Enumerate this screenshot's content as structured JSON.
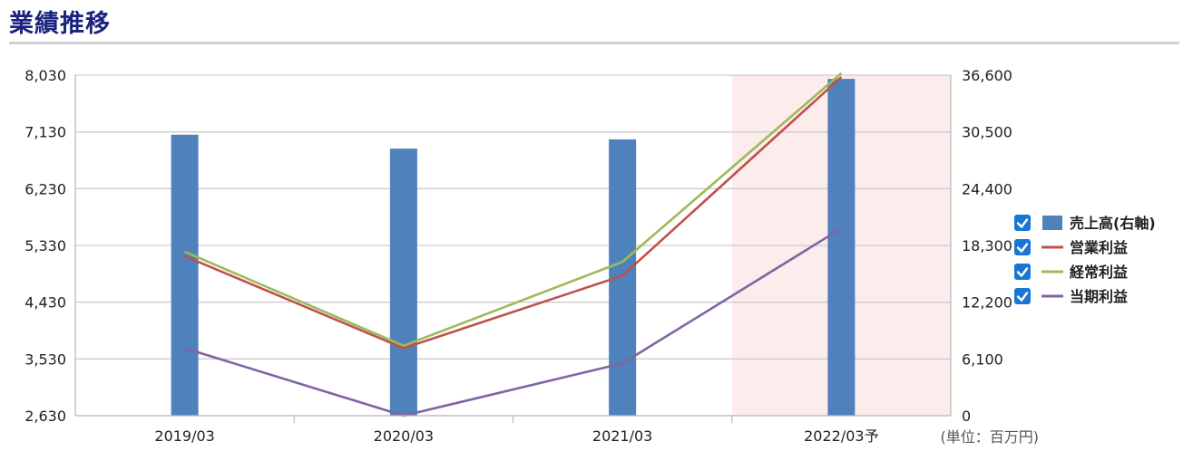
{
  "section_title": "業績推移",
  "chart_data": {
    "type": "bar",
    "categories": [
      "2019/03",
      "2020/03",
      "2021/03",
      "2022/03予"
    ],
    "forecast_index": 3,
    "forecast_color": "#fdecec",
    "unit_label": "(単位：百万円)",
    "left_axis": {
      "ylim": [
        2630,
        8030
      ],
      "ticks": [
        "2,630",
        "3,530",
        "4,430",
        "5,330",
        "6,230",
        "7,130",
        "8,030"
      ]
    },
    "right_axis": {
      "ylim": [
        0,
        36600
      ],
      "ticks": [
        "0",
        "6,100",
        "12,200",
        "18,300",
        "24,400",
        "30,500",
        "36,600"
      ]
    },
    "grid": true,
    "legend_position": "right",
    "series": [
      {
        "name": "売上高(右軸)",
        "kind": "bar",
        "axis": "right",
        "color": "#4f81bd",
        "checked": true,
        "values": [
          30200,
          28700,
          29700,
          36200
        ]
      },
      {
        "name": "営業利益",
        "kind": "line",
        "axis": "left",
        "color": "#c0504d",
        "checked": true,
        "values": [
          5160,
          3700,
          4850,
          8000
        ]
      },
      {
        "name": "経常利益",
        "kind": "line",
        "axis": "left",
        "color": "#9bbb59",
        "checked": true,
        "values": [
          5230,
          3740,
          5070,
          8060
        ]
      },
      {
        "name": "当期利益",
        "kind": "line",
        "axis": "left",
        "color": "#8064a2",
        "checked": true,
        "values": [
          3700,
          2630,
          3460,
          5600
        ]
      }
    ]
  }
}
